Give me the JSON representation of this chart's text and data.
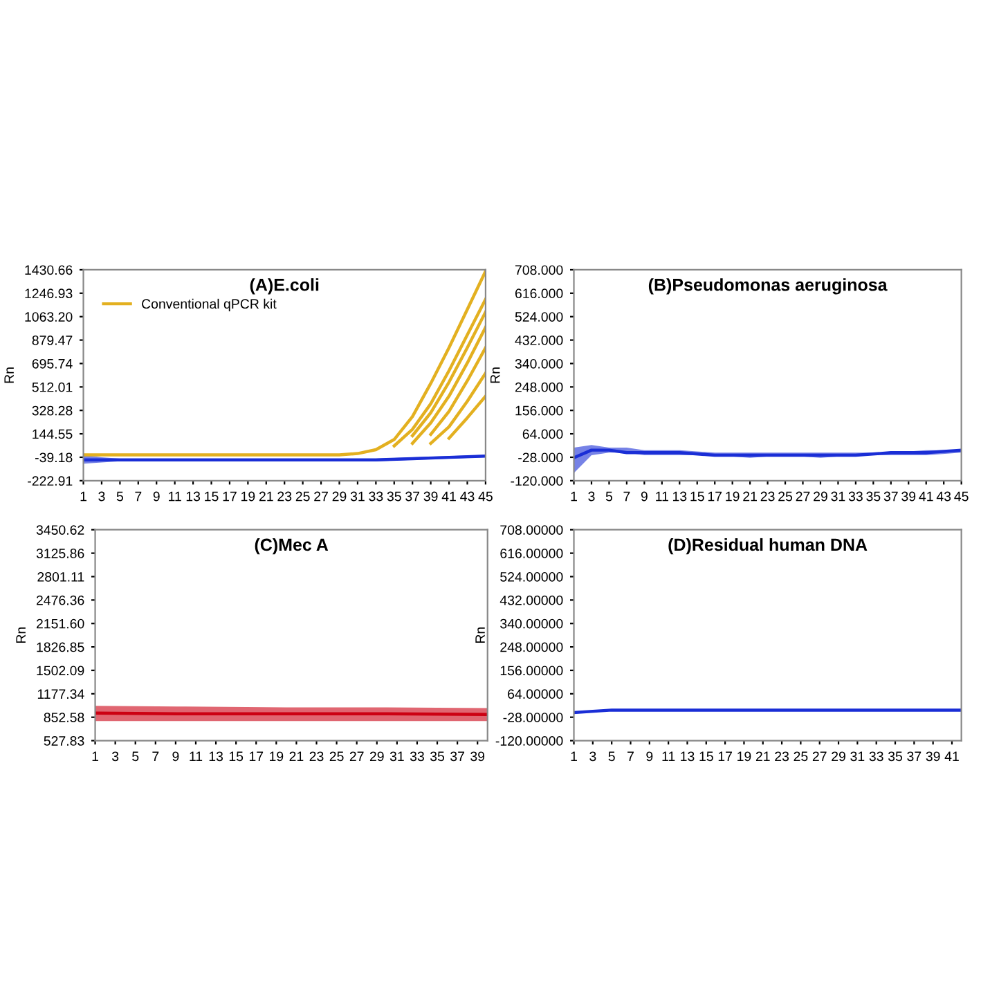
{
  "chart_data": [
    {
      "type": "line",
      "title": "(A)E.coli",
      "ylabel": "Rn",
      "legend": "top left",
      "grid": false,
      "marker": "none",
      "line_style": "solid",
      "xlim": [
        1,
        45
      ],
      "xticks": [
        1,
        3,
        5,
        7,
        9,
        11,
        13,
        15,
        17,
        19,
        21,
        23,
        25,
        27,
        29,
        31,
        33,
        35,
        37,
        39,
        41,
        43,
        45
      ],
      "ylim": [
        -222.91,
        1430.66
      ],
      "yticks": [
        {
          "value": -222.91,
          "label": "-222.91"
        },
        {
          "value": -39.18,
          "label": "-39.18"
        },
        {
          "value": 144.55,
          "label": "144.55"
        },
        {
          "value": 328.28,
          "label": "328.28"
        },
        {
          "value": 512.01,
          "label": "512.01"
        },
        {
          "value": 695.74,
          "label": "695.74"
        },
        {
          "value": 879.47,
          "label": "879.47"
        },
        {
          "value": 1063.2,
          "label": "1063.20"
        },
        {
          "value": 1246.93,
          "label": "1246.93"
        },
        {
          "value": 1430.66,
          "label": "1430.66"
        }
      ],
      "series": [
        {
          "color": "#1a2ed6",
          "x": [
            1,
            3,
            5,
            7,
            9,
            13,
            17,
            21,
            25,
            29,
            33,
            37,
            41,
            45
          ],
          "values": [
            -60,
            -60,
            -60,
            -60,
            -60,
            -60,
            -60,
            -60,
            -60,
            -60,
            -60,
            -50,
            -40,
            -30
          ],
          "lower": [
            -90,
            -80,
            -70,
            -70,
            -70,
            -70,
            -70,
            -70,
            -70,
            -70,
            -70,
            -60,
            -50,
            -40
          ],
          "upper": [
            -20,
            -40,
            -50,
            -50,
            -50,
            -50,
            -50,
            -50,
            -50,
            -50,
            -50,
            -40,
            -30,
            -20
          ]
        },
        {
          "name": "Conventional qPCR kit",
          "color": "#e3b020",
          "x": [
            1,
            5,
            9,
            13,
            17,
            21,
            25,
            29,
            31,
            33,
            35,
            37,
            39,
            41,
            43,
            45
          ],
          "values": [
            -20,
            -20,
            -20,
            -20,
            -20,
            -20,
            -20,
            -20,
            -10,
            20,
            100,
            280,
            540,
            820,
            1120,
            1420
          ]
        },
        {
          "color": "#e3b020",
          "x": [
            35,
            37,
            39,
            41,
            43,
            45
          ],
          "values": [
            50,
            180,
            380,
            640,
            920,
            1200
          ]
        },
        {
          "color": "#e3b020",
          "x": [
            37,
            39,
            41,
            43,
            45
          ],
          "values": [
            130,
            310,
            550,
            820,
            1100
          ]
        },
        {
          "color": "#e3b020",
          "x": [
            37,
            39,
            41,
            43,
            45
          ],
          "values": [
            70,
            230,
            440,
            700,
            980
          ]
        },
        {
          "color": "#e3b020",
          "x": [
            39,
            41,
            43,
            45
          ],
          "values": [
            140,
            320,
            560,
            820
          ]
        },
        {
          "color": "#e3b020",
          "x": [
            39,
            41,
            43,
            45
          ],
          "values": [
            70,
            200,
            400,
            620
          ]
        },
        {
          "color": "#e3b020",
          "x": [
            41,
            43,
            45
          ],
          "values": [
            110,
            270,
            440
          ]
        }
      ]
    },
    {
      "type": "line",
      "title": "(B)Pseudomonas aeruginosa",
      "ylabel": "Rn",
      "grid": false,
      "marker": "none",
      "line_style": "solid",
      "xlim": [
        1,
        45
      ],
      "xticks": [
        1,
        3,
        5,
        7,
        9,
        11,
        13,
        15,
        17,
        19,
        21,
        23,
        25,
        27,
        29,
        31,
        33,
        35,
        37,
        39,
        41,
        43,
        45
      ],
      "ylim": [
        -120,
        708
      ],
      "yticks": [
        {
          "value": -120,
          "label": "-120.000"
        },
        {
          "value": -28,
          "label": "-28.000"
        },
        {
          "value": 64,
          "label": "64.000"
        },
        {
          "value": 156,
          "label": "156.000"
        },
        {
          "value": 248,
          "label": "248.000"
        },
        {
          "value": 340,
          "label": "340.000"
        },
        {
          "value": 432,
          "label": "432.000"
        },
        {
          "value": 524,
          "label": "524.000"
        },
        {
          "value": 616,
          "label": "616.000"
        },
        {
          "value": 708,
          "label": "708.000"
        }
      ],
      "series": [
        {
          "color": "#1a2ed6",
          "x": [
            1,
            3,
            5,
            7,
            9,
            13,
            17,
            21,
            25,
            29,
            33,
            37,
            41,
            45
          ],
          "values": [
            -30,
            0,
            0,
            -10,
            -10,
            -10,
            -20,
            -20,
            -20,
            -20,
            -20,
            -10,
            -10,
            0
          ],
          "lower": [
            -90,
            -20,
            -10,
            -10,
            -20,
            -20,
            -20,
            -30,
            -20,
            -30,
            -20,
            -20,
            -20,
            -10
          ],
          "upper": [
            10,
            20,
            10,
            10,
            0,
            0,
            -10,
            -10,
            -10,
            -10,
            -10,
            -10,
            0,
            0
          ]
        }
      ]
    },
    {
      "type": "line",
      "title": "(C)Mec A",
      "ylabel": "Rn",
      "grid": false,
      "marker": "none",
      "line_style": "solid",
      "xlim": [
        1,
        40
      ],
      "xticks": [
        1,
        3,
        5,
        7,
        9,
        11,
        13,
        15,
        17,
        19,
        21,
        23,
        25,
        27,
        29,
        31,
        33,
        35,
        37,
        39
      ],
      "ylim": [
        527.83,
        3450.62
      ],
      "yticks": [
        {
          "value": 527.83,
          "label": "527.83"
        },
        {
          "value": 852.58,
          "label": "852.58"
        },
        {
          "value": 1177.34,
          "label": "1177.34"
        },
        {
          "value": 1502.09,
          "label": "1502.09"
        },
        {
          "value": 1826.85,
          "label": "1826.85"
        },
        {
          "value": 2151.6,
          "label": "2151.60"
        },
        {
          "value": 2476.36,
          "label": "2476.36"
        },
        {
          "value": 2801.11,
          "label": "2801.11"
        },
        {
          "value": 3125.86,
          "label": "3125.86"
        },
        {
          "value": 3450.62,
          "label": "3450.62"
        }
      ],
      "series": [
        {
          "color": "#cc0012",
          "x": [
            1,
            10,
            20,
            30,
            40
          ],
          "values": [
            910,
            900,
            900,
            900,
            890
          ],
          "lower": [
            800,
            800,
            800,
            800,
            800
          ],
          "upper": [
            1010,
            1000,
            990,
            990,
            980
          ]
        }
      ]
    },
    {
      "type": "line",
      "title": "(D)Residual human DNA",
      "ylabel": "Rn",
      "grid": false,
      "marker": "none",
      "line_style": "solid",
      "xlim": [
        1,
        42
      ],
      "xticks": [
        1,
        3,
        5,
        7,
        9,
        11,
        13,
        15,
        17,
        19,
        21,
        23,
        25,
        27,
        29,
        31,
        33,
        35,
        37,
        39,
        41
      ],
      "ylim": [
        -120,
        708
      ],
      "yticks": [
        {
          "value": -120,
          "label": "-120.00000"
        },
        {
          "value": -28,
          "label": "-28.00000"
        },
        {
          "value": 64,
          "label": "64.00000"
        },
        {
          "value": 156,
          "label": "156.00000"
        },
        {
          "value": 248,
          "label": "248.00000"
        },
        {
          "value": 340,
          "label": "340.00000"
        },
        {
          "value": 432,
          "label": "432.00000"
        },
        {
          "value": 524,
          "label": "524.00000"
        },
        {
          "value": 616,
          "label": "616.00000"
        },
        {
          "value": 708,
          "label": "708.00000"
        }
      ],
      "series": [
        {
          "color": "#1a2ed6",
          "x": [
            1,
            5,
            10,
            20,
            30,
            42
          ],
          "values": [
            -10,
            0,
            0,
            0,
            0,
            0
          ]
        }
      ]
    }
  ]
}
